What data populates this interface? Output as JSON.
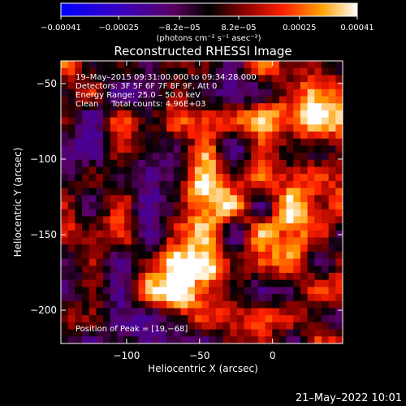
{
  "chart_data": {
    "type": "heatmap",
    "title": "Reconstructed RHESSI Image",
    "xlabel": "Heliocentric X (arcsec)",
    "ylabel": "Heliocentric Y (arcsec)",
    "xlim": [
      -145,
      48
    ],
    "ylim": [
      -222,
      -35
    ],
    "xticks": [
      -100,
      -50,
      0
    ],
    "xtick_labels": [
      "−100",
      "−50",
      "0"
    ],
    "yticks": [
      -50,
      -100,
      -150,
      -200
    ],
    "ytick_labels": [
      "−50",
      "−100",
      "−150",
      "−200"
    ],
    "colorbar": {
      "min": -0.00041,
      "max": 0.00041,
      "ticks": [
        -0.00041,
        -0.00025,
        -8.2e-05,
        8.2e-05,
        0.00025,
        0.00041
      ],
      "tick_labels": [
        "−0.00041",
        "−0.00025",
        "−8.2e−05",
        "8.2e−05",
        "0.00025",
        "0.00041"
      ],
      "unit_label": "(photons cm⁻² s⁻¹ asec⁻²)"
    },
    "annotations": [
      "19–May–2015 09:31:00.000 to 09:34:28.000",
      "Detectors: 3F 5F 6F 7F 8F 9F, Att 0",
      "Energy Range: 25.0 – 50.0 keV",
      "Clean     Total counts: 4.96E+03"
    ],
    "peak_label": "Position of Peak = [19,−68]",
    "peaks": [
      {
        "x": 20,
        "y": -64,
        "value": 0.00041
      },
      {
        "x": -50,
        "y": -125,
        "value": 0.00036
      },
      {
        "x": 25,
        "y": -140,
        "value": 0.00028
      },
      {
        "x": -55,
        "y": -185,
        "value": 0.0003
      }
    ]
  },
  "timestamp": "21–May–2022 10:01"
}
